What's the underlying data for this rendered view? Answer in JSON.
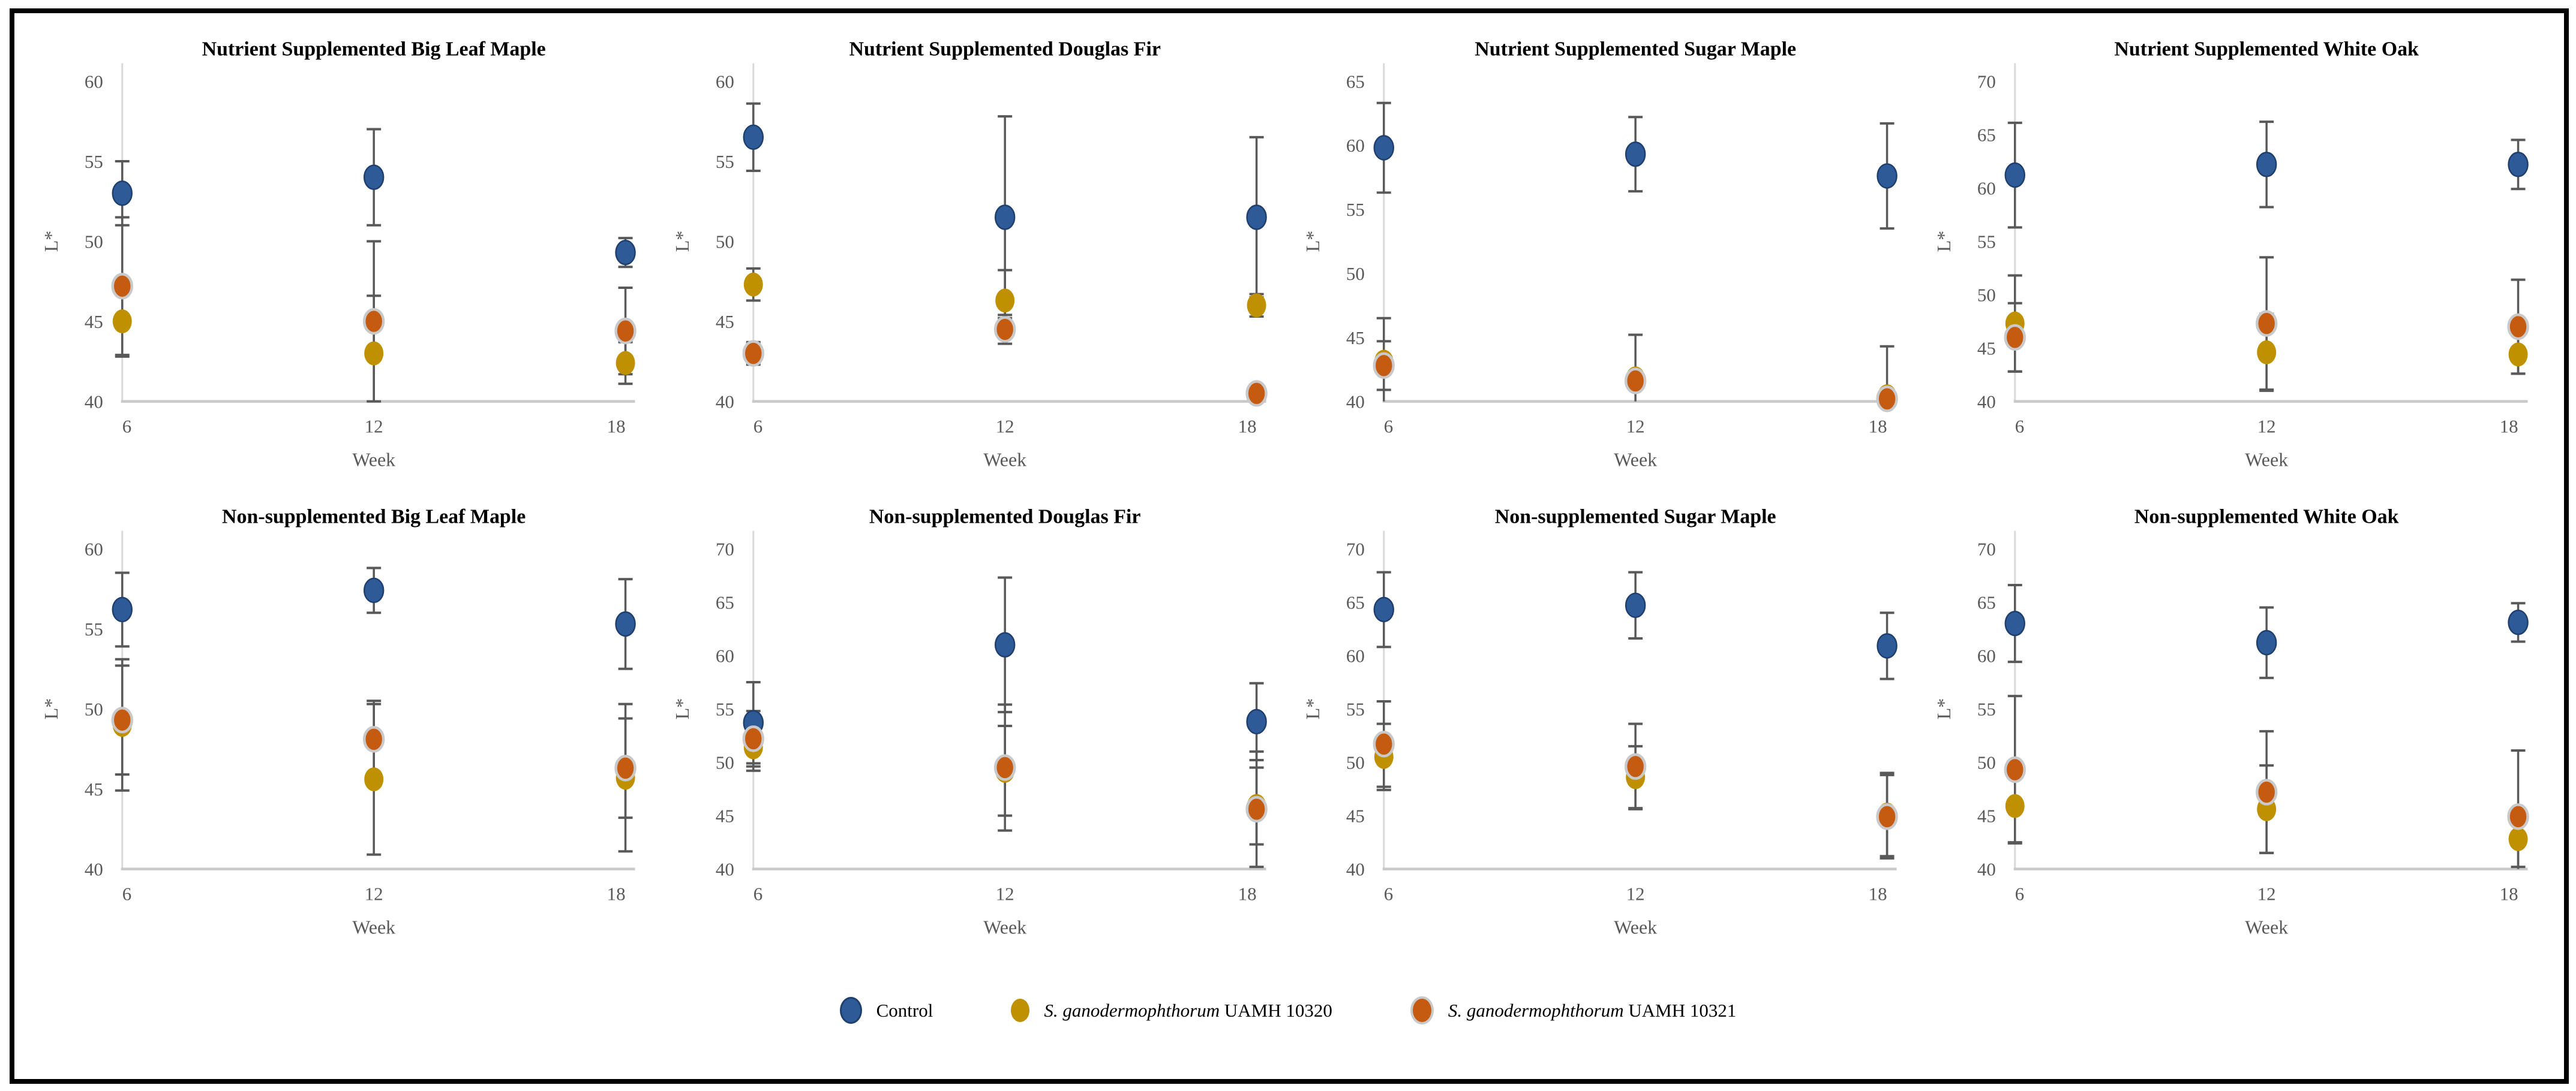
{
  "figure": {
    "background": "#ffffff",
    "border_color": "#000000"
  },
  "colors": {
    "control": "#2e5b97",
    "control_stroke": "#1f3f6e",
    "uamh10320": "#bf9000",
    "uamh10321": "#c55a11",
    "uamh10321_stroke": "#c9c9c9",
    "error_bar": "#595959",
    "axis_line": "#d9d9d9",
    "baseline": "#c9c9c9",
    "tick_label": "#595959"
  },
  "legend": [
    {
      "series": "control",
      "label_italic": "",
      "label_regular": "Control"
    },
    {
      "series": "uamh10320",
      "label_italic": "S. ganodermophthorum",
      "label_regular": " UAMH 10320"
    },
    {
      "series": "uamh10321",
      "label_italic": "S. ganodermophthorum",
      "label_regular": " UAMH 10321"
    }
  ],
  "chart_data": [
    {
      "type": "scatter",
      "title": "Nutrient Supplemented Big Leaf Maple",
      "xlabel": "Week",
      "ylabel": "L*",
      "x": [
        6,
        12,
        18
      ],
      "ylim": [
        40,
        60
      ],
      "ytick_step": 5,
      "series": [
        {
          "key": "control",
          "name": "Control",
          "values": [
            53.0,
            54.0,
            49.3
          ],
          "err": [
            2.0,
            3.0,
            0.9
          ]
        },
        {
          "key": "uamh10320",
          "name": "S. ganodermophthorum UAMH 10320",
          "values": [
            45.0,
            43.0,
            42.4
          ],
          "err": [
            2.2,
            3.6,
            1.3
          ]
        },
        {
          "key": "uamh10321",
          "name": "S. ganodermophthorum UAMH 10321",
          "values": [
            47.2,
            45.0,
            44.4
          ],
          "err": [
            4.3,
            5.0,
            2.7
          ]
        }
      ]
    },
    {
      "type": "scatter",
      "title": "Nutrient Supplemented Douglas Fir",
      "xlabel": "Week",
      "ylabel": "L*",
      "x": [
        6,
        12,
        18
      ],
      "ylim": [
        40,
        60
      ],
      "ytick_step": 5,
      "series": [
        {
          "key": "control",
          "name": "Control",
          "values": [
            56.5,
            51.5,
            51.5
          ],
          "err": [
            2.1,
            6.3,
            5.0
          ]
        },
        {
          "key": "uamh10320",
          "name": "S. ganodermophthorum UAMH 10320",
          "values": [
            47.3,
            46.3,
            46.0
          ],
          "err": [
            1.0,
            1.9,
            0.7
          ]
        },
        {
          "key": "uamh10321",
          "name": "S. ganodermophthorum UAMH 10321",
          "values": [
            43.0,
            44.5,
            40.5
          ],
          "err": [
            0.7,
            0.9,
            0.5
          ]
        }
      ]
    },
    {
      "type": "scatter",
      "title": "Nutrient Supplemented Sugar Maple",
      "xlabel": "Week",
      "ylabel": "L*",
      "x": [
        6,
        12,
        18
      ],
      "ylim": [
        40,
        65
      ],
      "ytick_step": 5,
      "series": [
        {
          "key": "control",
          "name": "Control",
          "values": [
            59.8,
            59.3,
            57.6
          ],
          "err": [
            3.5,
            2.9,
            4.1
          ]
        },
        {
          "key": "uamh10320",
          "name": "S. ganodermophthorum UAMH 10320",
          "values": [
            43.1,
            41.8,
            40.4
          ],
          "err": [
            3.4,
            0.4,
            0.4
          ]
        },
        {
          "key": "uamh10321",
          "name": "S. ganodermophthorum UAMH 10321",
          "values": [
            42.8,
            41.6,
            40.2
          ],
          "err": [
            1.9,
            3.6,
            4.1
          ]
        }
      ]
    },
    {
      "type": "scatter",
      "title": "Nutrient Supplemented White Oak",
      "xlabel": "Week",
      "ylabel": "L*",
      "x": [
        6,
        12,
        18
      ],
      "ylim": [
        40,
        70
      ],
      "ytick_step": 5,
      "series": [
        {
          "key": "control",
          "name": "Control",
          "values": [
            61.2,
            62.2,
            62.2
          ],
          "err": [
            4.9,
            4.0,
            2.3
          ]
        },
        {
          "key": "uamh10320",
          "name": "S. ganodermophthorum UAMH 10320",
          "values": [
            47.3,
            44.6,
            44.4
          ],
          "err": [
            4.5,
            3.6,
            1.8
          ]
        },
        {
          "key": "uamh10321",
          "name": "S. ganodermophthorum UAMH 10321",
          "values": [
            46.0,
            47.3,
            47.0
          ],
          "err": [
            3.2,
            6.2,
            4.4
          ]
        }
      ]
    },
    {
      "type": "scatter",
      "title": "Non-supplemented Big Leaf Maple",
      "xlabel": "Week",
      "ylabel": "L*",
      "x": [
        6,
        12,
        18
      ],
      "ylim": [
        40,
        60
      ],
      "ytick_step": 5,
      "series": [
        {
          "key": "control",
          "name": "Control",
          "values": [
            56.2,
            57.4,
            55.3
          ],
          "err": [
            2.3,
            1.4,
            2.8
          ]
        },
        {
          "key": "uamh10320",
          "name": "S. ganodermophthorum UAMH 10320",
          "values": [
            49.0,
            45.6,
            45.7
          ],
          "err": [
            4.1,
            4.7,
            4.6
          ]
        },
        {
          "key": "uamh10321",
          "name": "S. ganodermophthorum UAMH 10321",
          "values": [
            49.3,
            48.1,
            46.3
          ],
          "err": [
            3.4,
            2.4,
            3.1
          ]
        }
      ]
    },
    {
      "type": "scatter",
      "title": "Non-supplemented Douglas Fir",
      "xlabel": "Week",
      "ylabel": "L*",
      "x": [
        6,
        12,
        18
      ],
      "ylim": [
        40,
        70
      ],
      "ytick_step": 5,
      "series": [
        {
          "key": "control",
          "name": "Control",
          "values": [
            53.7,
            61.0,
            53.8
          ],
          "err": [
            3.8,
            6.3,
            3.6
          ]
        },
        {
          "key": "uamh10320",
          "name": "S. ganodermophthorum UAMH 10320",
          "values": [
            51.4,
            49.2,
            45.9
          ],
          "err": [
            2.2,
            4.2,
            3.6
          ]
        },
        {
          "key": "uamh10321",
          "name": "S. ganodermophthorum UAMH 10321",
          "values": [
            52.2,
            49.5,
            45.6
          ],
          "err": [
            2.6,
            5.9,
            5.4
          ]
        }
      ]
    },
    {
      "type": "scatter",
      "title": "Non-supplemented Sugar Maple",
      "xlabel": "Week",
      "ylabel": "L*",
      "x": [
        6,
        12,
        18
      ],
      "ylim": [
        40,
        70
      ],
      "ytick_step": 5,
      "series": [
        {
          "key": "control",
          "name": "Control",
          "values": [
            64.3,
            64.7,
            60.9
          ],
          "err": [
            3.5,
            3.1,
            3.1
          ]
        },
        {
          "key": "uamh10320",
          "name": "S. ganodermophthorum UAMH 10320",
          "values": [
            50.5,
            48.6,
            45.1
          ],
          "err": [
            3.1,
            2.9,
            3.9
          ]
        },
        {
          "key": "uamh10321",
          "name": "S. ganodermophthorum UAMH 10321",
          "values": [
            51.7,
            49.6,
            44.9
          ],
          "err": [
            4.0,
            4.0,
            3.9
          ]
        }
      ]
    },
    {
      "type": "scatter",
      "title": "Non-supplemented White Oak",
      "xlabel": "Week",
      "ylabel": "L*",
      "x": [
        6,
        12,
        18
      ],
      "ylim": [
        40,
        70
      ],
      "ytick_step": 5,
      "series": [
        {
          "key": "control",
          "name": "Control",
          "values": [
            63.0,
            61.2,
            63.1
          ],
          "err": [
            3.6,
            3.3,
            1.8
          ]
        },
        {
          "key": "uamh10320",
          "name": "S. ganodermophthorum UAMH 10320",
          "values": [
            45.9,
            45.6,
            42.8
          ],
          "err": [
            3.4,
            4.1,
            2.6
          ]
        },
        {
          "key": "uamh10321",
          "name": "S. ganodermophthorum UAMH 10321",
          "values": [
            49.3,
            47.2,
            44.9
          ],
          "err": [
            6.9,
            5.7,
            6.2
          ]
        }
      ]
    }
  ]
}
